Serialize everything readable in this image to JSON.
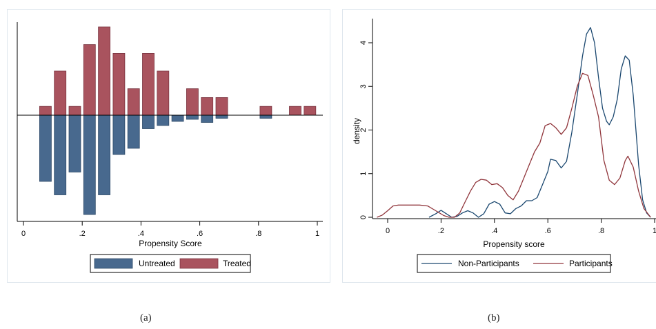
{
  "captions": {
    "a": "(a)",
    "b": "(b)"
  },
  "colors": {
    "untreated": "#48698e",
    "treated": "#a9535e",
    "non_participants": "#1a476f",
    "participants": "#90353b"
  },
  "chart_data": [
    {
      "type": "bar",
      "xlabel": "Propensity Score",
      "xlim": [
        0,
        1
      ],
      "xticks": [
        {
          "value": 0,
          "label": "0"
        },
        {
          "value": 0.2,
          "label": ".2"
        },
        {
          "value": 0.4,
          "label": ".4"
        },
        {
          "value": 0.6,
          "label": ".6"
        },
        {
          "value": 0.8,
          "label": ".8"
        },
        {
          "value": 1,
          "label": "1"
        }
      ],
      "bin_width": 0.04,
      "legend": {
        "placement": "bottom"
      },
      "series": [
        {
          "name": "Untreated",
          "direction": "down",
          "bins": [
            {
              "x": 0.075,
              "value": 0.64
            },
            {
              "x": 0.125,
              "value": 0.77
            },
            {
              "x": 0.175,
              "value": 0.55
            },
            {
              "x": 0.225,
              "value": 0.96
            },
            {
              "x": 0.275,
              "value": 0.77
            },
            {
              "x": 0.325,
              "value": 0.38
            },
            {
              "x": 0.375,
              "value": 0.32
            },
            {
              "x": 0.425,
              "value": 0.13
            },
            {
              "x": 0.475,
              "value": 0.1
            },
            {
              "x": 0.525,
              "value": 0.06
            },
            {
              "x": 0.575,
              "value": 0.04
            },
            {
              "x": 0.625,
              "value": 0.07
            },
            {
              "x": 0.675,
              "value": 0.03
            },
            {
              "x": 0.825,
              "value": 0.03
            }
          ]
        },
        {
          "name": "Treated",
          "direction": "up",
          "bins": [
            {
              "x": 0.075,
              "value": 0.1
            },
            {
              "x": 0.125,
              "value": 0.5
            },
            {
              "x": 0.175,
              "value": 0.1
            },
            {
              "x": 0.225,
              "value": 0.8
            },
            {
              "x": 0.275,
              "value": 1.0
            },
            {
              "x": 0.325,
              "value": 0.7
            },
            {
              "x": 0.375,
              "value": 0.3
            },
            {
              "x": 0.425,
              "value": 0.7
            },
            {
              "x": 0.475,
              "value": 0.5
            },
            {
              "x": 0.575,
              "value": 0.3
            },
            {
              "x": 0.625,
              "value": 0.2
            },
            {
              "x": 0.675,
              "value": 0.2
            },
            {
              "x": 0.825,
              "value": 0.1
            },
            {
              "x": 0.925,
              "value": 0.1
            },
            {
              "x": 0.975,
              "value": 0.1
            }
          ]
        }
      ]
    },
    {
      "type": "line",
      "xlabel": "Propensity score",
      "ylabel": "density",
      "xlim": [
        -0.05,
        1
      ],
      "ylim": [
        0,
        4.5
      ],
      "xticks": [
        {
          "value": 0,
          "label": "0"
        },
        {
          "value": 0.2,
          "label": ".2"
        },
        {
          "value": 0.4,
          "label": ".4"
        },
        {
          "value": 0.6,
          "label": ".6"
        },
        {
          "value": 0.8,
          "label": ".8"
        },
        {
          "value": 1,
          "label": "1"
        }
      ],
      "yticks": [
        {
          "value": 0,
          "label": "0"
        },
        {
          "value": 1,
          "label": "1"
        },
        {
          "value": 2,
          "label": "2"
        },
        {
          "value": 3,
          "label": "3"
        },
        {
          "value": 4,
          "label": "4"
        }
      ],
      "legend": {
        "placement": "bottom"
      },
      "series": [
        {
          "name": "Non-Participants",
          "points": [
            [
              0.155,
              0.0
            ],
            [
              0.18,
              0.08
            ],
            [
              0.2,
              0.16
            ],
            [
              0.22,
              0.08
            ],
            [
              0.24,
              0.0
            ],
            [
              0.26,
              0.02
            ],
            [
              0.28,
              0.1
            ],
            [
              0.3,
              0.15
            ],
            [
              0.32,
              0.1
            ],
            [
              0.34,
              0.0
            ],
            [
              0.36,
              0.08
            ],
            [
              0.38,
              0.3
            ],
            [
              0.4,
              0.36
            ],
            [
              0.42,
              0.3
            ],
            [
              0.44,
              0.1
            ],
            [
              0.46,
              0.08
            ],
            [
              0.48,
              0.2
            ],
            [
              0.5,
              0.26
            ],
            [
              0.52,
              0.38
            ],
            [
              0.54,
              0.38
            ],
            [
              0.56,
              0.45
            ],
            [
              0.58,
              0.75
            ],
            [
              0.6,
              1.05
            ],
            [
              0.61,
              1.33
            ],
            [
              0.63,
              1.3
            ],
            [
              0.65,
              1.13
            ],
            [
              0.67,
              1.28
            ],
            [
              0.69,
              1.95
            ],
            [
              0.71,
              2.8
            ],
            [
              0.73,
              3.7
            ],
            [
              0.745,
              4.2
            ],
            [
              0.76,
              4.35
            ],
            [
              0.775,
              4.0
            ],
            [
              0.79,
              3.2
            ],
            [
              0.805,
              2.5
            ],
            [
              0.82,
              2.2
            ],
            [
              0.83,
              2.12
            ],
            [
              0.845,
              2.3
            ],
            [
              0.86,
              2.7
            ],
            [
              0.875,
              3.4
            ],
            [
              0.89,
              3.7
            ],
            [
              0.905,
              3.6
            ],
            [
              0.92,
              2.8
            ],
            [
              0.94,
              1.2
            ],
            [
              0.955,
              0.4
            ],
            [
              0.97,
              0.1
            ],
            [
              0.985,
              0.0
            ]
          ]
        },
        {
          "name": "Participants",
          "points": [
            [
              -0.04,
              0.0
            ],
            [
              -0.02,
              0.05
            ],
            [
              0.0,
              0.15
            ],
            [
              0.02,
              0.26
            ],
            [
              0.04,
              0.28
            ],
            [
              0.08,
              0.28
            ],
            [
              0.12,
              0.28
            ],
            [
              0.15,
              0.26
            ],
            [
              0.18,
              0.15
            ],
            [
              0.21,
              0.04
            ],
            [
              0.23,
              0.0
            ],
            [
              0.25,
              0.0
            ],
            [
              0.27,
              0.1
            ],
            [
              0.29,
              0.35
            ],
            [
              0.31,
              0.6
            ],
            [
              0.33,
              0.8
            ],
            [
              0.35,
              0.87
            ],
            [
              0.37,
              0.85
            ],
            [
              0.39,
              0.75
            ],
            [
              0.41,
              0.77
            ],
            [
              0.43,
              0.68
            ],
            [
              0.45,
              0.5
            ],
            [
              0.47,
              0.4
            ],
            [
              0.49,
              0.6
            ],
            [
              0.51,
              0.9
            ],
            [
              0.53,
              1.2
            ],
            [
              0.55,
              1.5
            ],
            [
              0.57,
              1.7
            ],
            [
              0.59,
              2.1
            ],
            [
              0.61,
              2.15
            ],
            [
              0.63,
              2.05
            ],
            [
              0.65,
              1.9
            ],
            [
              0.67,
              2.05
            ],
            [
              0.69,
              2.5
            ],
            [
              0.71,
              3.0
            ],
            [
              0.73,
              3.3
            ],
            [
              0.75,
              3.25
            ],
            [
              0.77,
              2.8
            ],
            [
              0.79,
              2.3
            ],
            [
              0.81,
              1.3
            ],
            [
              0.83,
              0.85
            ],
            [
              0.85,
              0.75
            ],
            [
              0.87,
              0.9
            ],
            [
              0.89,
              1.3
            ],
            [
              0.9,
              1.4
            ],
            [
              0.92,
              1.15
            ],
            [
              0.94,
              0.6
            ],
            [
              0.96,
              0.2
            ],
            [
              0.985,
              0.0
            ]
          ]
        }
      ]
    }
  ]
}
